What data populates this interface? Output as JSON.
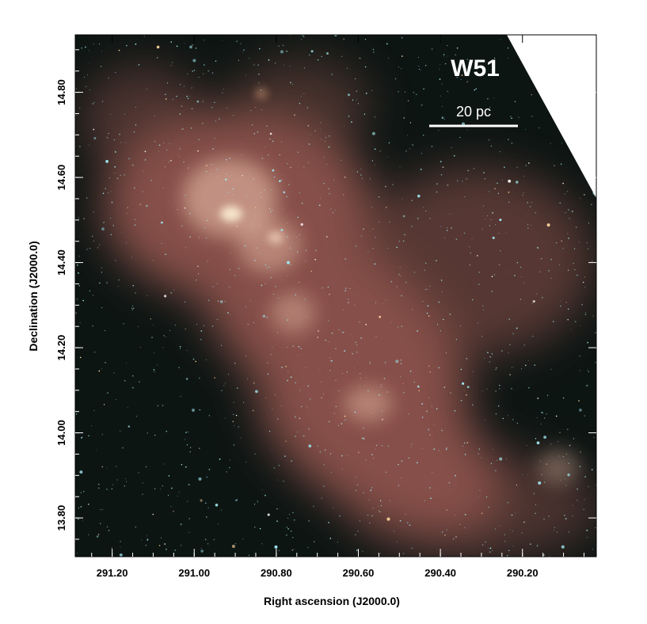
{
  "figure": {
    "title": "W51",
    "scalebar_label": "20 pc",
    "xlabel": "Right ascension (J2000.0)",
    "ylabel": "Declination (J2000.0)",
    "colors": {
      "background": "#0d1513",
      "nebula": "#b0645c",
      "nebula_bright": "#f2c6b0",
      "star": "#9fe8ee",
      "overlay_text": "#ffffff"
    },
    "xaxis": {
      "range": [
        291.29,
        290.02
      ],
      "ticks": [
        {
          "value": 291.2,
          "label": "291.20"
        },
        {
          "value": 291.0,
          "label": "291.00"
        },
        {
          "value": 290.8,
          "label": "290.80"
        },
        {
          "value": 290.6,
          "label": "290.60"
        },
        {
          "value": 290.4,
          "label": "290.40"
        },
        {
          "value": 290.2,
          "label": "290.20"
        }
      ]
    },
    "yaxis": {
      "range": [
        13.709,
        14.935
      ],
      "ticks": [
        {
          "value": 13.8,
          "label": "13.80"
        },
        {
          "value": 14.0,
          "label": "14.00"
        },
        {
          "value": 14.2,
          "label": "14.20"
        },
        {
          "value": 14.4,
          "label": "14.40"
        },
        {
          "value": 14.6,
          "label": "14.60"
        },
        {
          "value": 14.8,
          "label": "14.80"
        }
      ]
    }
  }
}
